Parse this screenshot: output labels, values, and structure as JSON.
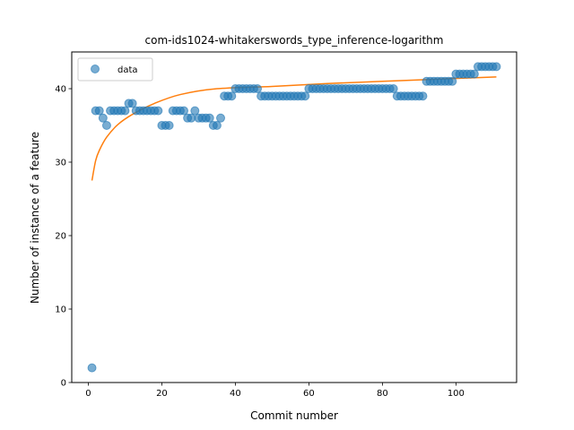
{
  "chart_data": {
    "type": "scatter",
    "title": "com-ids1024-whitakerswords_type_inference-logarithm",
    "xlabel": "Commit number",
    "ylabel": "Number of instance of a feature",
    "xlim": [
      -4.5,
      116.5
    ],
    "ylim": [
      0,
      45
    ],
    "xticks": [
      0,
      20,
      40,
      60,
      80,
      100
    ],
    "yticks": [
      0,
      10,
      20,
      30,
      40
    ],
    "grid": false,
    "legend_position": "top-left",
    "colors": {
      "data": "#1f77b4",
      "fit": "#ff7f0e"
    },
    "series": [
      {
        "name": "data",
        "kind": "scatter",
        "x": [
          1,
          2,
          3,
          4,
          5,
          6,
          7,
          8,
          9,
          10,
          11,
          12,
          13,
          14,
          15,
          16,
          17,
          18,
          19,
          20,
          21,
          22,
          23,
          24,
          25,
          26,
          27,
          28,
          29,
          30,
          31,
          32,
          33,
          34,
          35,
          36,
          37,
          38,
          39,
          40,
          41,
          42,
          43,
          44,
          45,
          46,
          47,
          48,
          49,
          50,
          51,
          52,
          53,
          54,
          55,
          56,
          57,
          58,
          59,
          60,
          61,
          62,
          63,
          64,
          65,
          66,
          67,
          68,
          69,
          70,
          71,
          72,
          73,
          74,
          75,
          76,
          77,
          78,
          79,
          80,
          81,
          82,
          83,
          84,
          85,
          86,
          87,
          88,
          89,
          90,
          91,
          92,
          93,
          94,
          95,
          96,
          97,
          98,
          99,
          100,
          101,
          102,
          103,
          104,
          105,
          106,
          107,
          108,
          109,
          110,
          111
        ],
        "y": [
          2,
          37,
          37,
          36,
          35,
          37,
          37,
          37,
          37,
          37,
          38,
          38,
          37,
          37,
          37,
          37,
          37,
          37,
          37,
          35,
          35,
          35,
          37,
          37,
          37,
          37,
          36,
          36,
          37,
          36,
          36,
          36,
          36,
          35,
          35,
          36,
          39,
          39,
          39,
          40,
          40,
          40,
          40,
          40,
          40,
          40,
          39,
          39,
          39,
          39,
          39,
          39,
          39,
          39,
          39,
          39,
          39,
          39,
          39,
          40,
          40,
          40,
          40,
          40,
          40,
          40,
          40,
          40,
          40,
          40,
          40,
          40,
          40,
          40,
          40,
          40,
          40,
          40,
          40,
          40,
          40,
          40,
          40,
          39,
          39,
          39,
          39,
          39,
          39,
          39,
          39,
          41,
          41,
          41,
          41,
          41,
          41,
          41,
          41,
          42,
          42,
          42,
          42,
          42,
          42,
          43,
          43,
          43,
          43,
          43,
          43
        ]
      },
      {
        "kind": "line",
        "fit_model": "logarithm",
        "x": [
          1,
          2,
          3,
          5,
          8,
          12,
          18,
          25,
          35,
          50,
          65,
          80,
          95,
          111
        ],
        "y": [
          27.5,
          30.2,
          31.6,
          33.4,
          35.1,
          36.5,
          38.0,
          39.2,
          40.0,
          40.3,
          40.7,
          41.0,
          41.3,
          41.6
        ]
      }
    ]
  }
}
